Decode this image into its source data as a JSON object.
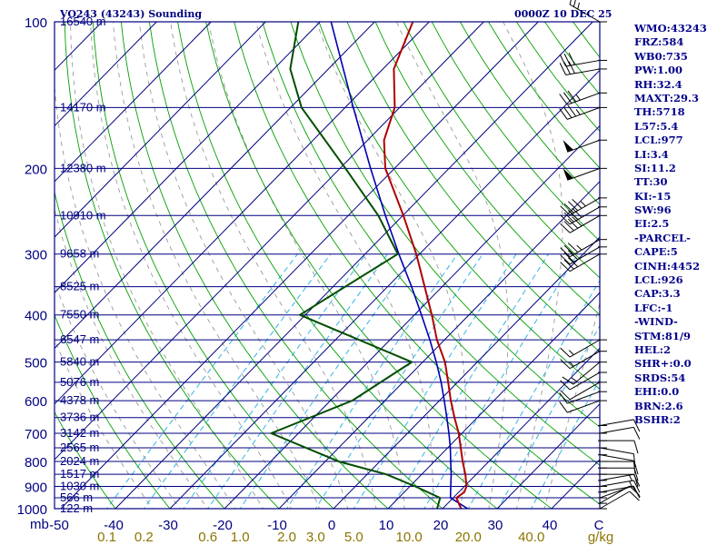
{
  "header": {
    "title": "VO243 (43243) Sounding",
    "time": "0000Z 10 DEC 25"
  },
  "indices": [
    "WMO:43243",
    "FRZ:584",
    "WB0:735",
    "PW:1.00",
    "RH:32.4",
    "MAXT:29.3",
    "TH:5718",
    "L57:5.4",
    "LCL:977",
    "LI:3.4",
    "SI:11.2",
    "TT:30",
    "KI:-15",
    "SW:96",
    "EI:2.5",
    "-PARCEL-",
    "CAPE:5",
    "CINH:4452",
    "LCL:926",
    "CAP:3.3",
    "LFC:-1",
    "-WIND-",
    "STM:81/9",
    "HEL:2",
    "SHR+:0.0",
    "SRDS:54",
    "EHI:0.0",
    "BRN:2.6",
    "BSHR:2"
  ],
  "colors": {
    "frame": "#000080",
    "isobar": "#000080",
    "isotherm": "#000080",
    "dry_adiabat": "#00a000",
    "moist_adiabat": "#9a9a9a",
    "mixing_ratio": "#33b5e5",
    "temperature": "#b00000",
    "dewpoint": "#004d00",
    "parcel": "#0000b0",
    "wind_barb": "#000000",
    "label_mixing": "#8b7500",
    "text": "#000080"
  },
  "chart_data": {
    "type": "skew-t",
    "title": "VO243 (43243) Sounding",
    "pressure_unit": "mb",
    "x_unit": "C",
    "pressure_range": [
      1000,
      100
    ],
    "temperature_range": [
      -50,
      50
    ],
    "pressure_ticks": [
      100,
      200,
      300,
      400,
      500,
      600,
      700,
      800,
      900,
      1000
    ],
    "temperature_ticks": [
      -50,
      -40,
      -30,
      -20,
      -10,
      0,
      10,
      20,
      30,
      40
    ],
    "mixing_ratio_labels": [
      0.1,
      0.2,
      0.6,
      1.0,
      2.0,
      3.0,
      5.0,
      10.0,
      20.0,
      40.0
    ],
    "mixing_ratio_unit": "g/kg",
    "height_labels": [
      {
        "p": 100,
        "label": "16540 m"
      },
      {
        "p": 150,
        "label": "14170 m"
      },
      {
        "p": 200,
        "label": "12380 m"
      },
      {
        "p": 250,
        "label": "10910 m"
      },
      {
        "p": 300,
        "label": "9658 m"
      },
      {
        "p": 350,
        "label": "8525 m"
      },
      {
        "p": 400,
        "label": "7550 m"
      },
      {
        "p": 450,
        "label": "6547 m"
      },
      {
        "p": 500,
        "label": "5840 m"
      },
      {
        "p": 550,
        "label": "5076 m"
      },
      {
        "p": 600,
        "label": "4378 m"
      },
      {
        "p": 650,
        "label": "3736 m"
      },
      {
        "p": 700,
        "label": "3142 m"
      },
      {
        "p": 750,
        "label": "2565 m"
      },
      {
        "p": 800,
        "label": "2024 m"
      },
      {
        "p": 850,
        "label": "1517 m"
      },
      {
        "p": 900,
        "label": "1030 m"
      },
      {
        "p": 950,
        "label": "566 m"
      },
      {
        "p": 1000,
        "label": "122 m"
      }
    ],
    "temperature_profile": [
      {
        "p": 1000,
        "t": 23.4
      },
      {
        "p": 975,
        "t": 22.0
      },
      {
        "p": 950,
        "t": 20.6
      },
      {
        "p": 925,
        "t": 21.0
      },
      {
        "p": 900,
        "t": 20.4
      },
      {
        "p": 850,
        "t": 18.0
      },
      {
        "p": 800,
        "t": 15.2
      },
      {
        "p": 750,
        "t": 12.4
      },
      {
        "p": 700,
        "t": 9.4
      },
      {
        "p": 650,
        "t": 5.8
      },
      {
        "p": 600,
        "t": 2.1
      },
      {
        "p": 550,
        "t": -1.7
      },
      {
        "p": 500,
        "t": -5.9
      },
      {
        "p": 450,
        "t": -11.4
      },
      {
        "p": 400,
        "t": -16.8
      },
      {
        "p": 350,
        "t": -23.2
      },
      {
        "p": 300,
        "t": -30.6
      },
      {
        "p": 250,
        "t": -39.9
      },
      {
        "p": 200,
        "t": -51.7
      },
      {
        "p": 175,
        "t": -57.0
      },
      {
        "p": 150,
        "t": -60.9
      },
      {
        "p": 125,
        "t": -68.0
      },
      {
        "p": 100,
        "t": -73.0
      }
    ],
    "dewpoint_profile": [
      {
        "p": 1000,
        "td": 19.0
      },
      {
        "p": 950,
        "td": 17.6
      },
      {
        "p": 900,
        "td": 11.0
      },
      {
        "p": 850,
        "td": 3.5
      },
      {
        "p": 800,
        "td": -7.5
      },
      {
        "p": 700,
        "td": -25.0
      },
      {
        "p": 600,
        "td": -16.0
      },
      {
        "p": 500,
        "td": -12.0
      },
      {
        "p": 400,
        "td": -41.0
      },
      {
        "p": 300,
        "td": -34.0
      },
      {
        "p": 250,
        "td": -44.5
      },
      {
        "p": 200,
        "td": -59.0
      },
      {
        "p": 150,
        "td": -78.0
      },
      {
        "p": 125,
        "td": -87.0
      },
      {
        "p": 100,
        "td": -94.0
      }
    ],
    "parcel_profile": [
      {
        "p": 1000,
        "t": 24.6
      },
      {
        "p": 950,
        "t": 19.5
      },
      {
        "p": 900,
        "t": 17.5
      },
      {
        "p": 850,
        "t": 15.4
      },
      {
        "p": 800,
        "t": 13.0
      },
      {
        "p": 750,
        "t": 10.5
      },
      {
        "p": 700,
        "t": 7.6
      },
      {
        "p": 650,
        "t": 4.4
      },
      {
        "p": 600,
        "t": 0.9
      },
      {
        "p": 550,
        "t": -3.0
      },
      {
        "p": 500,
        "t": -7.5
      },
      {
        "p": 450,
        "t": -12.7
      },
      {
        "p": 400,
        "t": -18.7
      },
      {
        "p": 350,
        "t": -25.6
      },
      {
        "p": 300,
        "t": -33.8
      },
      {
        "p": 250,
        "t": -43.2
      },
      {
        "p": 200,
        "t": -54.4
      },
      {
        "p": 150,
        "t": -68.5
      },
      {
        "p": 100,
        "t": -88.0
      }
    ],
    "wind_barbs": [
      {
        "p": 1000,
        "dir": 60,
        "spd": 10
      },
      {
        "p": 975,
        "dir": 60,
        "spd": 10
      },
      {
        "p": 950,
        "dir": 70,
        "spd": 10
      },
      {
        "p": 925,
        "dir": 80,
        "spd": 10
      },
      {
        "p": 900,
        "dir": 80,
        "spd": 15
      },
      {
        "p": 875,
        "dir": 80,
        "spd": 15
      },
      {
        "p": 850,
        "dir": 90,
        "spd": 10
      },
      {
        "p": 825,
        "dir": 90,
        "spd": 10
      },
      {
        "p": 800,
        "dir": 90,
        "spd": 10
      },
      {
        "p": 775,
        "dir": 100,
        "spd": 10
      },
      {
        "p": 750,
        "dir": 100,
        "spd": 10
      },
      {
        "p": 725,
        "dir": 90,
        "spd": 10
      },
      {
        "p": 700,
        "dir": 80,
        "spd": 10
      },
      {
        "p": 675,
        "dir": 80,
        "spd": 10
      },
      {
        "p": 600,
        "dir": 250,
        "spd": 10
      },
      {
        "p": 575,
        "dir": 250,
        "spd": 10
      },
      {
        "p": 550,
        "dir": 240,
        "spd": 10
      },
      {
        "p": 525,
        "dir": 240,
        "spd": 10
      },
      {
        "p": 500,
        "dir": 230,
        "spd": 15
      },
      {
        "p": 475,
        "dir": 240,
        "spd": 15
      },
      {
        "p": 450,
        "dir": 240,
        "spd": 15
      },
      {
        "p": 300,
        "dir": 240,
        "spd": 30
      },
      {
        "p": 290,
        "dir": 240,
        "spd": 30
      },
      {
        "p": 280,
        "dir": 240,
        "spd": 35
      },
      {
        "p": 250,
        "dir": 240,
        "spd": 40
      },
      {
        "p": 240,
        "dir": 240,
        "spd": 40
      },
      {
        "p": 230,
        "dir": 240,
        "spd": 45
      },
      {
        "p": 200,
        "dir": 250,
        "spd": 50
      },
      {
        "p": 175,
        "dir": 250,
        "spd": 50
      },
      {
        "p": 150,
        "dir": 250,
        "spd": 35
      },
      {
        "p": 140,
        "dir": 250,
        "spd": 35
      },
      {
        "p": 125,
        "dir": 260,
        "spd": 30
      },
      {
        "p": 120,
        "dir": 260,
        "spd": 30
      },
      {
        "p": 100,
        "dir": 300,
        "spd": 25
      }
    ]
  }
}
